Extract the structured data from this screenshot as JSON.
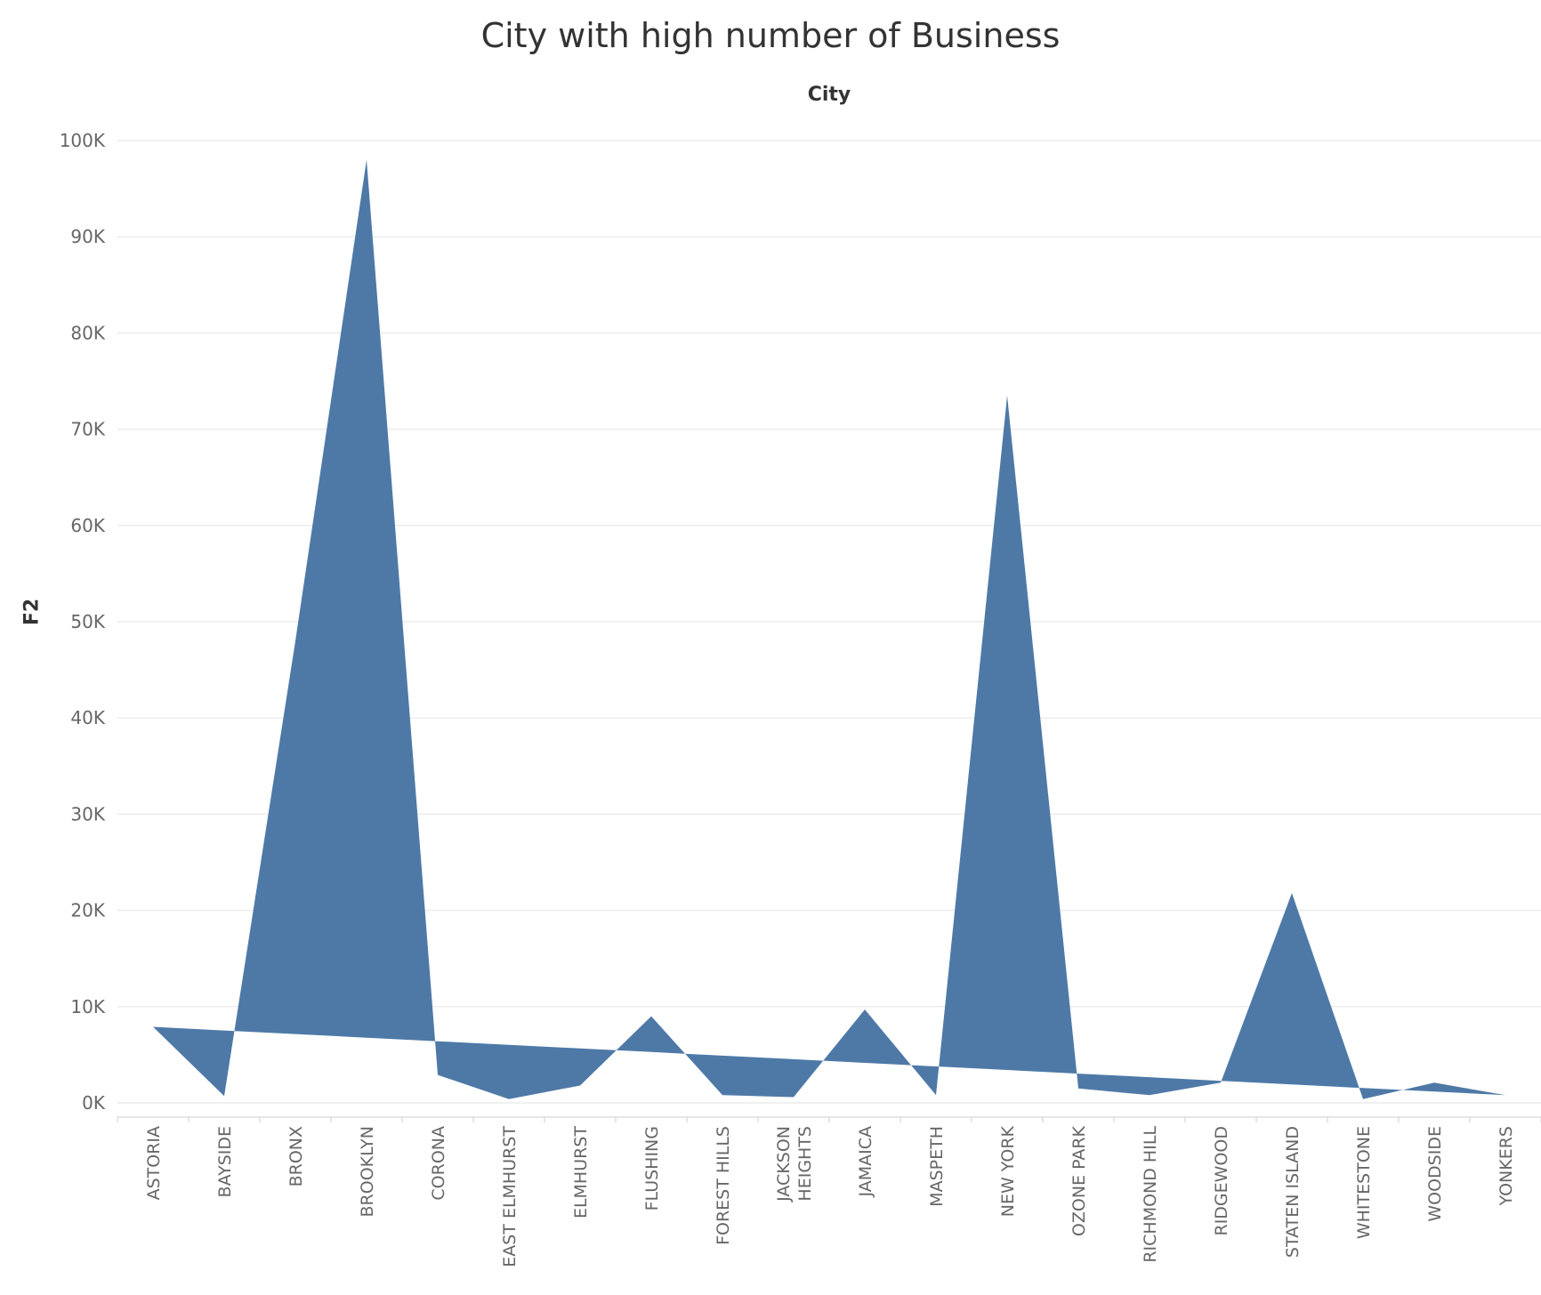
{
  "chart_data": {
    "type": "area",
    "title": "City with high number of Business",
    "column_header": "City",
    "xlabel": "",
    "ylabel": "F2",
    "ylim": [
      0,
      100000
    ],
    "yticks": [
      "0K",
      "10K",
      "20K",
      "30K",
      "40K",
      "50K",
      "60K",
      "70K",
      "80K",
      "90K",
      "100K"
    ],
    "grid": true,
    "color": "#4e79a7",
    "categories": [
      "ASTORIA",
      "BAYSIDE",
      "BRONX",
      "BROOKLYN",
      "CORONA",
      "EAST ELMHURST",
      "ELMHURST",
      "FLUSHING",
      "FOREST HILLS",
      "JACKSON HEIGHTS",
      "JAMAICA",
      "MASPETH",
      "NEW YORK",
      "OZONE PARK",
      "RICHMOND HILL",
      "RIDGEWOOD",
      "STATEN ISLAND",
      "WHITESTONE",
      "WOODSIDE",
      "YONKERS"
    ],
    "category_lines": [
      [
        "ASTORIA"
      ],
      [
        "BAYSIDE"
      ],
      [
        "BRONX"
      ],
      [
        "BROOKLYN"
      ],
      [
        "CORONA"
      ],
      [
        "EAST ELMHURST"
      ],
      [
        "ELMHURST"
      ],
      [
        "FLUSHING"
      ],
      [
        "FOREST HILLS"
      ],
      [
        "JACKSON",
        "HEIGHTS"
      ],
      [
        "JAMAICA"
      ],
      [
        "MASPETH"
      ],
      [
        "NEW YORK"
      ],
      [
        "OZONE PARK"
      ],
      [
        "RICHMOND HILL"
      ],
      [
        "RIDGEWOOD"
      ],
      [
        "STATEN ISLAND"
      ],
      [
        "WHITESTONE"
      ],
      [
        "WOODSIDE"
      ],
      [
        "YONKERS"
      ]
    ],
    "values": [
      7900,
      700,
      48000,
      98000,
      2900,
      400,
      1800,
      9000,
      800,
      600,
      9700,
      800,
      73500,
      1500,
      800,
      2100,
      21800,
      400,
      2100,
      800
    ],
    "trend": {
      "start": 7900,
      "end": 800
    }
  }
}
